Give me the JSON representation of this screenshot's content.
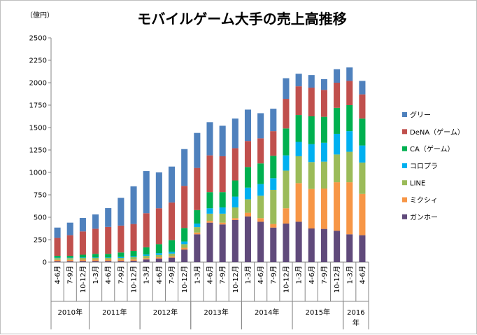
{
  "chart_data": {
    "type": "bar",
    "stacked": true,
    "title": "モバイルゲーム大手の売上高推移",
    "unit_label": "（億円）",
    "ylim": [
      0,
      2500
    ],
    "yticks": [
      0,
      250,
      500,
      750,
      1000,
      1250,
      1500,
      1750,
      2000,
      2250,
      2500
    ],
    "grid": false,
    "legend_position": "right",
    "categories": [
      "4-6月",
      "7-9月",
      "10-12月",
      "1-3月",
      "4-6月",
      "7-9月",
      "10-12月",
      "1-3月",
      "4-6月",
      "7-9月",
      "10-12月",
      "1-3月",
      "4-6月",
      "7-9月",
      "10-12月",
      "1-3月",
      "4-6月",
      "7-9月",
      "10-12月",
      "1-3月",
      "4-6月",
      "7-9月",
      "10-12月",
      "1-3月",
      "4-6月"
    ],
    "year_groups": [
      {
        "label": "2010年",
        "start": 0,
        "count": 3
      },
      {
        "label": "2011年",
        "start": 3,
        "count": 4
      },
      {
        "label": "2012年",
        "start": 7,
        "count": 4
      },
      {
        "label": "2013年",
        "start": 11,
        "count": 4
      },
      {
        "label": "2014年",
        "start": 15,
        "count": 4
      },
      {
        "label": "2015年",
        "start": 19,
        "count": 4
      },
      {
        "label": "2016年",
        "start": 23,
        "count": 2
      }
    ],
    "series": [
      {
        "name": "ガンホー",
        "color": "#604a7b",
        "values": [
          10,
          10,
          12,
          12,
          12,
          12,
          15,
          30,
          40,
          50,
          140,
          310,
          440,
          420,
          470,
          510,
          450,
          385,
          430,
          450,
          375,
          370,
          350,
          310,
          300
        ]
      },
      {
        "name": "ミクシィ",
        "color": "#f79646",
        "values": [
          15,
          15,
          15,
          15,
          15,
          15,
          15,
          15,
          15,
          15,
          20,
          20,
          20,
          20,
          20,
          40,
          40,
          40,
          170,
          430,
          440,
          450,
          540,
          580,
          460
        ]
      },
      {
        "name": "LINE",
        "color": "#9bbb59",
        "values": [
          20,
          20,
          20,
          20,
          20,
          20,
          25,
          25,
          25,
          30,
          40,
          60,
          80,
          100,
          120,
          150,
          250,
          380,
          420,
          300,
          300,
          300,
          310,
          340,
          350
        ]
      },
      {
        "name": "コロプラ",
        "color": "#00b0f0",
        "values": [
          5,
          5,
          5,
          5,
          5,
          10,
          10,
          15,
          20,
          20,
          30,
          40,
          60,
          70,
          120,
          130,
          130,
          130,
          170,
          160,
          200,
          210,
          230,
          230,
          190
        ]
      },
      {
        "name": "CA（ゲーム）",
        "color": "#00b050",
        "values": [
          20,
          20,
          30,
          40,
          40,
          50,
          60,
          80,
          100,
          130,
          150,
          150,
          180,
          170,
          180,
          230,
          230,
          250,
          300,
          300,
          310,
          290,
          290,
          290,
          300
        ]
      },
      {
        "name": "DeNA（ゲーム）",
        "color": "#c0504d",
        "values": [
          200,
          230,
          260,
          280,
          300,
          300,
          300,
          380,
          400,
          420,
          470,
          470,
          410,
          400,
          360,
          290,
          280,
          275,
          330,
          320,
          320,
          300,
          280,
          270,
          270
        ]
      },
      {
        "name": "グリー",
        "color": "#4f81bd",
        "values": [
          115,
          140,
          150,
          160,
          210,
          310,
          420,
          470,
          400,
          400,
          410,
          390,
          370,
          340,
          330,
          350,
          280,
          250,
          230,
          140,
          140,
          120,
          150,
          150,
          150
        ]
      }
    ]
  }
}
